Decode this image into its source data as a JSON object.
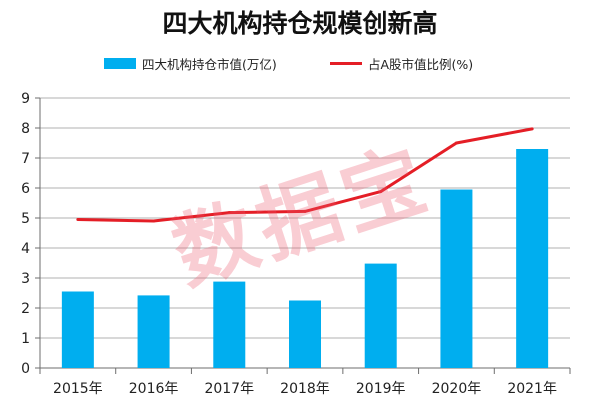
{
  "chart_data": {
    "type": "bar",
    "title": "四大机构持仓规模创新高",
    "categories": [
      "2015年",
      "2016年",
      "2017年",
      "2018年",
      "2019年",
      "2020年",
      "2021年"
    ],
    "series": [
      {
        "name": "四大机构持仓市值(万亿)",
        "type": "bar",
        "color": "#00AEEF",
        "values": [
          2.55,
          2.42,
          2.88,
          2.25,
          3.48,
          5.95,
          7.3
        ]
      },
      {
        "name": "占A股市值比例(%)",
        "type": "line",
        "color": "#E41E26",
        "values": [
          4.95,
          4.9,
          5.18,
          5.22,
          5.88,
          7.5,
          7.97
        ]
      }
    ],
    "ylim": [
      0,
      9
    ],
    "yticks": [
      "0",
      "1",
      "2",
      "3",
      "4",
      "5",
      "6",
      "7",
      "8",
      "9"
    ],
    "xlabel": "",
    "ylabel": "",
    "grid": true,
    "legend_position": "top-center"
  },
  "watermark": "数据宝"
}
